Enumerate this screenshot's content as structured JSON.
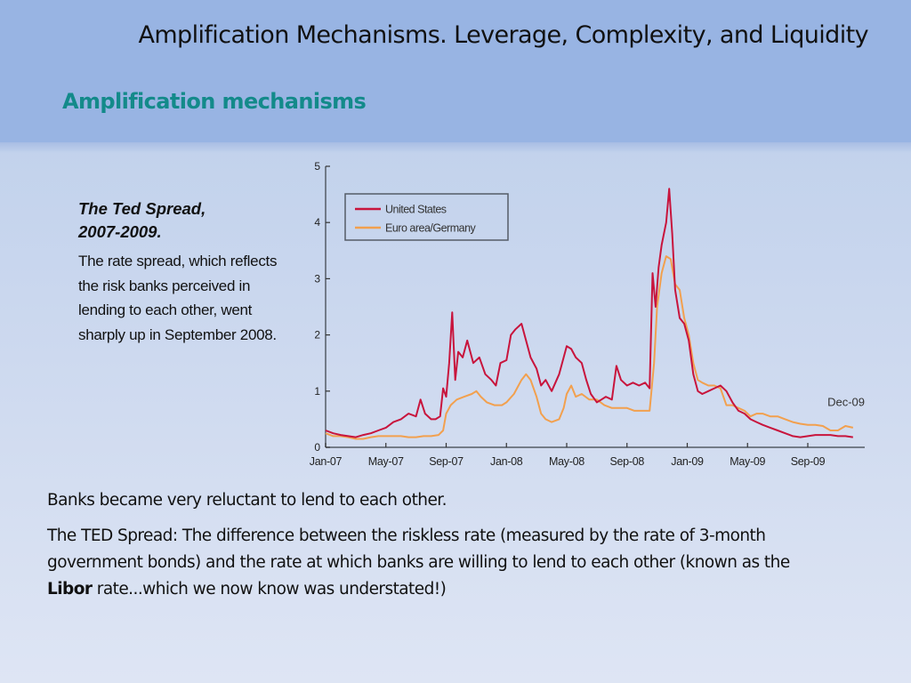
{
  "header": {
    "title": "Amplification Mechanisms. Leverage, Complexity, and Liquidity",
    "subtitle": "Amplification mechanisms"
  },
  "caption": {
    "title_line1": "The Ted Spread,",
    "title_line2": "2007-2009.",
    "body": "The rate spread, which reflects the risk banks perceived in lending to each other, went sharply up in September 2008."
  },
  "bottom": {
    "line1": "Banks became very reluctant to lend to each other.",
    "line2_before": "The TED Spread: The difference between the riskless rate (measured by the rate of 3-month government bonds) and the rate at which banks are willing to lend to each other (known as the ",
    "line2_bold": "Libor",
    "line2_after": " rate...which we now know was understated!)"
  },
  "chart_data": {
    "type": "line",
    "title": "",
    "xlabel": "",
    "ylabel": "",
    "ylim": [
      0,
      5
    ],
    "yticks": [
      0,
      1,
      2,
      3,
      4,
      5
    ],
    "xlim_months": [
      0,
      35
    ],
    "xticks": [
      {
        "month": 0,
        "label": "Jan-07"
      },
      {
        "month": 4,
        "label": "May-07"
      },
      {
        "month": 8,
        "label": "Sep-07"
      },
      {
        "month": 12,
        "label": "Jan-08"
      },
      {
        "month": 16,
        "label": "May-08"
      },
      {
        "month": 20,
        "label": "Sep-08"
      },
      {
        "month": 24,
        "label": "Jan-09"
      },
      {
        "month": 28,
        "label": "May-09"
      },
      {
        "month": 32,
        "label": "Sep-09"
      }
    ],
    "annotation": {
      "text": "Dec-09",
      "month": 35,
      "value": 0.8
    },
    "legend": {
      "position": "top-left",
      "entries": [
        "United States",
        "Euro area/Germany"
      ]
    },
    "grid": false,
    "x_unit": "months since Jan-07",
    "series": [
      {
        "name": "United States",
        "color": "#c8143c",
        "points": [
          [
            0,
            0.3
          ],
          [
            0.5,
            0.25
          ],
          [
            1,
            0.22
          ],
          [
            1.5,
            0.2
          ],
          [
            2,
            0.18
          ],
          [
            2.5,
            0.22
          ],
          [
            3,
            0.25
          ],
          [
            3.5,
            0.3
          ],
          [
            4,
            0.35
          ],
          [
            4.5,
            0.45
          ],
          [
            5,
            0.5
          ],
          [
            5.5,
            0.6
          ],
          [
            6,
            0.55
          ],
          [
            6.3,
            0.85
          ],
          [
            6.6,
            0.6
          ],
          [
            7,
            0.5
          ],
          [
            7.3,
            0.5
          ],
          [
            7.6,
            0.55
          ],
          [
            7.8,
            1.05
          ],
          [
            8,
            0.9
          ],
          [
            8.2,
            1.5
          ],
          [
            8.4,
            2.4
          ],
          [
            8.6,
            1.2
          ],
          [
            8.8,
            1.7
          ],
          [
            9.1,
            1.6
          ],
          [
            9.4,
            1.9
          ],
          [
            9.8,
            1.5
          ],
          [
            10.2,
            1.6
          ],
          [
            10.6,
            1.3
          ],
          [
            11,
            1.2
          ],
          [
            11.3,
            1.1
          ],
          [
            11.6,
            1.5
          ],
          [
            12,
            1.55
          ],
          [
            12.3,
            2.0
          ],
          [
            12.6,
            2.1
          ],
          [
            13,
            2.2
          ],
          [
            13.3,
            1.9
          ],
          [
            13.6,
            1.6
          ],
          [
            14,
            1.4
          ],
          [
            14.3,
            1.1
          ],
          [
            14.6,
            1.2
          ],
          [
            15,
            1.0
          ],
          [
            15.5,
            1.3
          ],
          [
            16,
            1.8
          ],
          [
            16.3,
            1.75
          ],
          [
            16.6,
            1.6
          ],
          [
            17,
            1.5
          ],
          [
            17.3,
            1.2
          ],
          [
            17.6,
            0.95
          ],
          [
            18,
            0.8
          ],
          [
            18.3,
            0.85
          ],
          [
            18.6,
            0.9
          ],
          [
            19,
            0.85
          ],
          [
            19.3,
            1.45
          ],
          [
            19.6,
            1.2
          ],
          [
            20,
            1.1
          ],
          [
            20.4,
            1.15
          ],
          [
            20.8,
            1.1
          ],
          [
            21.2,
            1.15
          ],
          [
            21.5,
            1.05
          ],
          [
            21.7,
            3.1
          ],
          [
            21.9,
            2.5
          ],
          [
            22.1,
            3.2
          ],
          [
            22.3,
            3.6
          ],
          [
            22.6,
            4.0
          ],
          [
            22.8,
            4.6
          ],
          [
            23,
            3.8
          ],
          [
            23.2,
            2.8
          ],
          [
            23.5,
            2.3
          ],
          [
            23.8,
            2.2
          ],
          [
            24.1,
            1.9
          ],
          [
            24.4,
            1.3
          ],
          [
            24.7,
            1.0
          ],
          [
            25,
            0.95
          ],
          [
            25.4,
            1.0
          ],
          [
            25.8,
            1.05
          ],
          [
            26.2,
            1.1
          ],
          [
            26.6,
            1.0
          ],
          [
            27,
            0.8
          ],
          [
            27.4,
            0.65
          ],
          [
            27.8,
            0.6
          ],
          [
            28.2,
            0.5
          ],
          [
            28.6,
            0.45
          ],
          [
            29,
            0.4
          ],
          [
            29.5,
            0.35
          ],
          [
            30,
            0.3
          ],
          [
            30.5,
            0.25
          ],
          [
            31,
            0.2
          ],
          [
            31.5,
            0.18
          ],
          [
            32,
            0.2
          ],
          [
            32.5,
            0.22
          ],
          [
            33,
            0.22
          ],
          [
            33.5,
            0.22
          ],
          [
            34,
            0.2
          ],
          [
            34.5,
            0.2
          ],
          [
            35,
            0.18
          ]
        ]
      },
      {
        "name": "Euro area/Germany",
        "color": "#f2a04e",
        "points": [
          [
            0,
            0.25
          ],
          [
            0.5,
            0.2
          ],
          [
            1,
            0.2
          ],
          [
            1.5,
            0.18
          ],
          [
            2,
            0.15
          ],
          [
            2.5,
            0.15
          ],
          [
            3,
            0.18
          ],
          [
            3.5,
            0.2
          ],
          [
            4,
            0.2
          ],
          [
            4.5,
            0.2
          ],
          [
            5,
            0.2
          ],
          [
            5.5,
            0.18
          ],
          [
            6,
            0.18
          ],
          [
            6.5,
            0.2
          ],
          [
            7,
            0.2
          ],
          [
            7.5,
            0.22
          ],
          [
            7.8,
            0.3
          ],
          [
            8,
            0.6
          ],
          [
            8.3,
            0.75
          ],
          [
            8.7,
            0.85
          ],
          [
            9.2,
            0.9
          ],
          [
            9.7,
            0.95
          ],
          [
            10,
            1.0
          ],
          [
            10.3,
            0.9
          ],
          [
            10.7,
            0.8
          ],
          [
            11.2,
            0.75
          ],
          [
            11.7,
            0.75
          ],
          [
            12,
            0.8
          ],
          [
            12.5,
            0.95
          ],
          [
            13,
            1.2
          ],
          [
            13.3,
            1.3
          ],
          [
            13.6,
            1.2
          ],
          [
            14,
            0.9
          ],
          [
            14.3,
            0.6
          ],
          [
            14.6,
            0.5
          ],
          [
            15,
            0.45
          ],
          [
            15.5,
            0.5
          ],
          [
            15.8,
            0.7
          ],
          [
            16,
            0.95
          ],
          [
            16.3,
            1.1
          ],
          [
            16.6,
            0.9
          ],
          [
            17,
            0.95
          ],
          [
            17.5,
            0.85
          ],
          [
            18,
            0.85
          ],
          [
            18.5,
            0.75
          ],
          [
            19,
            0.7
          ],
          [
            19.5,
            0.7
          ],
          [
            20,
            0.7
          ],
          [
            20.5,
            0.65
          ],
          [
            21,
            0.65
          ],
          [
            21.5,
            0.65
          ],
          [
            21.8,
            1.5
          ],
          [
            22,
            2.5
          ],
          [
            22.3,
            3.1
          ],
          [
            22.6,
            3.4
          ],
          [
            22.9,
            3.35
          ],
          [
            23.2,
            2.9
          ],
          [
            23.5,
            2.8
          ],
          [
            23.8,
            2.3
          ],
          [
            24.1,
            2.0
          ],
          [
            24.4,
            1.5
          ],
          [
            24.7,
            1.2
          ],
          [
            25,
            1.15
          ],
          [
            25.4,
            1.1
          ],
          [
            25.8,
            1.1
          ],
          [
            26.2,
            1.05
          ],
          [
            26.6,
            0.75
          ],
          [
            27,
            0.75
          ],
          [
            27.4,
            0.7
          ],
          [
            27.8,
            0.65
          ],
          [
            28.2,
            0.55
          ],
          [
            28.6,
            0.6
          ],
          [
            29,
            0.6
          ],
          [
            29.5,
            0.55
          ],
          [
            30,
            0.55
          ],
          [
            30.5,
            0.5
          ],
          [
            31,
            0.45
          ],
          [
            31.5,
            0.42
          ],
          [
            32,
            0.4
          ],
          [
            32.5,
            0.4
          ],
          [
            33,
            0.38
          ],
          [
            33.5,
            0.3
          ],
          [
            34,
            0.3
          ],
          [
            34.5,
            0.38
          ],
          [
            35,
            0.35
          ]
        ]
      }
    ]
  }
}
